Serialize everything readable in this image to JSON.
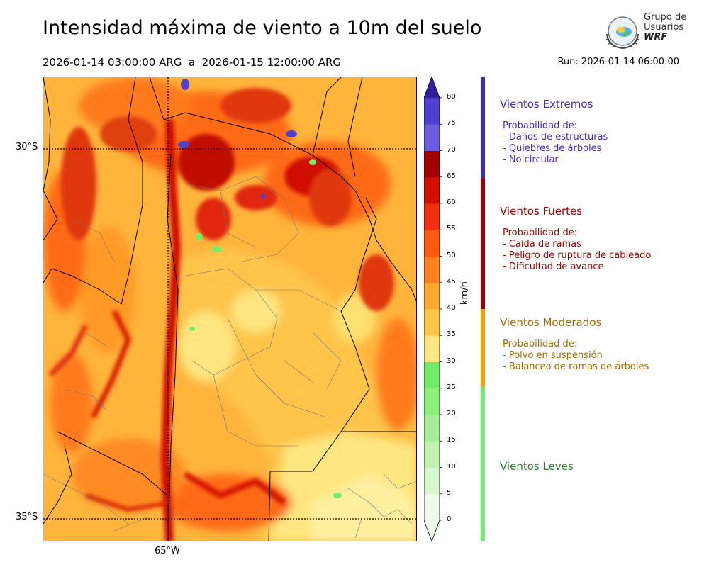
{
  "header": {
    "title": "Intensidad máxima de viento a 10m del suelo",
    "period": "2026-01-14 03:00:00 ARG  a  2026-01-15 12:00:00 ARG",
    "run": "Run: 2026-01-14 06:00:00"
  },
  "logo": {
    "line1": "Grupo de",
    "line2": "Usuarios",
    "line3": "WRF"
  },
  "map": {
    "lat_labels": [
      "30°S",
      "35°S"
    ],
    "lon_labels": [
      "65°W"
    ]
  },
  "colorbar": {
    "unit": "km/h",
    "ticks": [
      "0",
      "5",
      "10",
      "15",
      "20",
      "25",
      "30",
      "35",
      "40",
      "45",
      "50",
      "55",
      "60",
      "65",
      "70",
      "75",
      "80"
    ],
    "colors": [
      "#eefbe8",
      "#d8f7cc",
      "#c2f2b0",
      "#a6ee96",
      "#8ef07c",
      "#70ee6a",
      "#ffe680",
      "#ffc44a",
      "#ffa830",
      "#ff8020",
      "#ff5a10",
      "#f03010",
      "#d01000",
      "#a00000",
      "#6c5ce0",
      "#5040d0",
      "#3c2cb8",
      "#3020a0"
    ],
    "extend_low_color": "#eefbe8",
    "extend_high_color": "#3020a0"
  },
  "categories": [
    {
      "name": "Vientos Extremos",
      "color": "#3d2db5",
      "desc_intro": "Probabilidad de:",
      "items": [
        "- Daños de estructuras",
        "- Quiebres de árboles",
        "- No circular"
      ]
    },
    {
      "name": "Vientos Fuertes",
      "color": "#a00000",
      "desc_intro": "Probabilidad de:",
      "items": [
        "- Caida de ramas",
        "- Peligro de ruptura de cableado",
        "- Dificultad de avance"
      ]
    },
    {
      "name": "Vientos Moderados",
      "color": "#a06a00",
      "desc_intro": "Probabilidad de:",
      "items": [
        "- Polvo en suspensión",
        "- Balanceo de ramas de árboles"
      ]
    },
    {
      "name": "Vientos Leves",
      "color": "#2e7d32",
      "desc_intro": "",
      "items": []
    }
  ]
}
